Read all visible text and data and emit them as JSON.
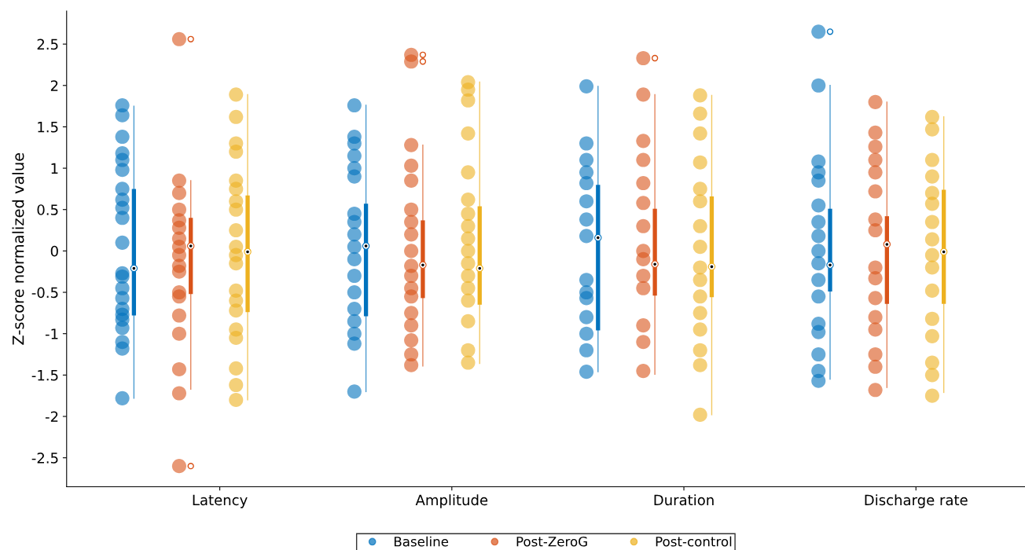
{
  "chart_data": {
    "type": "box",
    "ylabel": "Z-score normalized value",
    "categories": [
      "Latency",
      "Amplitude",
      "Duration",
      "Discharge rate"
    ],
    "ylim": [
      -2.85,
      2.9
    ],
    "yticks": [
      {
        "value": -2.5,
        "label": "-2.5"
      },
      {
        "value": -2,
        "label": "-2"
      },
      {
        "value": -1.5,
        "label": "-1.5"
      },
      {
        "value": -1,
        "label": "-1"
      },
      {
        "value": -0.5,
        "label": "-0.5"
      },
      0,
      0.5,
      1,
      1.5,
      2,
      2.5
    ],
    "grid": false,
    "legend": "bottom",
    "series": [
      {
        "name": "Baseline",
        "color": "#0072bd",
        "boxes": [
          {
            "low": -1.78,
            "q1": -0.78,
            "median": -0.21,
            "q3": 0.75,
            "high": 1.75
          },
          {
            "low": -1.7,
            "q1": -0.79,
            "median": 0.06,
            "q3": 0.57,
            "high": 1.76
          },
          {
            "low": -1.46,
            "q1": -0.96,
            "median": 0.16,
            "q3": 0.8,
            "high": 1.99
          },
          {
            "low": -1.55,
            "q1": -0.49,
            "median": -0.17,
            "q3": 0.51,
            "high": 2.0,
            "outliers": [
              2.65
            ]
          }
        ]
      },
      {
        "name": "Post-ZeroG",
        "color": "#d95319",
        "boxes": [
          {
            "low": -1.67,
            "q1": -0.52,
            "median": 0.06,
            "q3": 0.4,
            "high": 0.85,
            "outliers": [
              2.56,
              -2.6
            ]
          },
          {
            "low": -1.39,
            "q1": -0.57,
            "median": -0.17,
            "q3": 0.37,
            "high": 1.28,
            "outliers": [
              2.37,
              2.29
            ]
          },
          {
            "low": -1.49,
            "q1": -0.54,
            "median": -0.16,
            "q3": 0.51,
            "high": 1.89,
            "outliers": [
              2.33
            ]
          },
          {
            "low": -1.65,
            "q1": -0.64,
            "median": 0.08,
            "q3": 0.42,
            "high": 1.8
          }
        ]
      },
      {
        "name": "Post-control",
        "color": "#edb120",
        "boxes": [
          {
            "low": -1.8,
            "q1": -0.74,
            "median": -0.01,
            "q3": 0.67,
            "high": 1.89
          },
          {
            "low": -1.36,
            "q1": -0.65,
            "median": -0.21,
            "q3": 0.54,
            "high": 2.04
          },
          {
            "low": -1.98,
            "q1": -0.56,
            "median": -0.19,
            "q3": 0.66,
            "high": 1.88
          },
          {
            "low": -1.71,
            "q1": -0.64,
            "median": -0.01,
            "q3": 0.74,
            "high": 1.62
          }
        ]
      },
      {
        "type": "scatter",
        "color": "#0072bd",
        "x": [
          "Latency",
          "Latency",
          "Latency",
          "Latency",
          "Latency",
          "Latency",
          "Latency",
          "Latency",
          "Latency",
          "Latency",
          "Latency",
          "Latency",
          "Latency",
          "Latency",
          "Latency",
          "Latency",
          "Latency",
          "Latency",
          "Latency",
          "Latency",
          "Latency",
          "Latency",
          "Amplitude",
          "Amplitude",
          "Amplitude",
          "Amplitude",
          "Amplitude",
          "Amplitude",
          "Amplitude",
          "Amplitude",
          "Amplitude",
          "Amplitude",
          "Amplitude",
          "Amplitude",
          "Amplitude",
          "Amplitude",
          "Amplitude",
          "Amplitude",
          "Amplitude",
          "Amplitude",
          "Duration",
          "Duration",
          "Duration",
          "Duration",
          "Duration",
          "Duration",
          "Duration",
          "Duration",
          "Duration",
          "Duration",
          "Duration",
          "Duration",
          "Duration",
          "Duration",
          "Duration",
          "Discharge rate",
          "Discharge rate",
          "Discharge rate",
          "Discharge rate",
          "Discharge rate",
          "Discharge rate",
          "Discharge rate",
          "Discharge rate",
          "Discharge rate",
          "Discharge rate",
          "Discharge rate",
          "Discharge rate",
          "Discharge rate",
          "Discharge rate",
          "Discharge rate",
          "Discharge rate",
          "Discharge rate"
        ],
        "values": [
          1.76,
          1.64,
          1.38,
          1.18,
          1.1,
          0.98,
          0.75,
          0.62,
          0.52,
          0.4,
          0.1,
          -0.27,
          -0.31,
          -0.45,
          -0.57,
          -0.7,
          -0.77,
          -0.83,
          -0.93,
          -1.1,
          -1.18,
          -1.78,
          1.76,
          1.38,
          1.3,
          1.15,
          1.0,
          0.9,
          0.45,
          0.35,
          0.2,
          0.05,
          -0.1,
          -0.3,
          -0.5,
          -0.7,
          -0.85,
          -1.0,
          -1.12,
          -1.7,
          1.99,
          1.3,
          1.1,
          0.95,
          0.82,
          0.6,
          0.38,
          0.18,
          -0.35,
          -0.5,
          -0.57,
          -0.8,
          -1.0,
          -1.2,
          -1.46,
          2.65,
          2.0,
          1.08,
          0.95,
          0.85,
          0.55,
          0.35,
          0.18,
          0.0,
          -0.15,
          -0.35,
          -0.55,
          -0.88,
          -0.98,
          -1.25,
          -1.45,
          -1.57
        ]
      },
      {
        "type": "scatter",
        "color": "#d95319",
        "x": [
          "Latency",
          "Latency",
          "Latency",
          "Latency",
          "Latency",
          "Latency",
          "Latency",
          "Latency",
          "Latency",
          "Latency",
          "Latency",
          "Latency",
          "Latency",
          "Latency",
          "Latency",
          "Latency",
          "Latency",
          "Latency",
          "Amplitude",
          "Amplitude",
          "Amplitude",
          "Amplitude",
          "Amplitude",
          "Amplitude",
          "Amplitude",
          "Amplitude",
          "Amplitude",
          "Amplitude",
          "Amplitude",
          "Amplitude",
          "Amplitude",
          "Amplitude",
          "Amplitude",
          "Amplitude",
          "Amplitude",
          "Amplitude",
          "Duration",
          "Duration",
          "Duration",
          "Duration",
          "Duration",
          "Duration",
          "Duration",
          "Duration",
          "Duration",
          "Duration",
          "Duration",
          "Duration",
          "Duration",
          "Duration",
          "Discharge rate",
          "Discharge rate",
          "Discharge rate",
          "Discharge rate",
          "Discharge rate",
          "Discharge rate",
          "Discharge rate",
          "Discharge rate",
          "Discharge rate",
          "Discharge rate",
          "Discharge rate",
          "Discharge rate",
          "Discharge rate",
          "Discharge rate",
          "Discharge rate",
          "Discharge rate"
        ],
        "values": [
          2.56,
          0.85,
          0.7,
          0.5,
          0.37,
          0.28,
          0.15,
          0.05,
          -0.05,
          -0.18,
          -0.25,
          -0.5,
          -0.55,
          -0.78,
          -1.0,
          -1.43,
          -1.72,
          -2.6,
          2.37,
          2.29,
          1.28,
          1.03,
          0.85,
          0.5,
          0.35,
          0.2,
          0.0,
          -0.18,
          -0.3,
          -0.45,
          -0.55,
          -0.75,
          -0.9,
          -1.08,
          -1.25,
          -1.38,
          2.33,
          1.89,
          1.33,
          1.1,
          0.82,
          0.58,
          0.3,
          0.0,
          -0.1,
          -0.3,
          -0.45,
          -0.9,
          -1.1,
          -1.45,
          1.8,
          1.43,
          1.26,
          1.1,
          0.95,
          0.72,
          0.38,
          0.25,
          -0.2,
          -0.33,
          -0.57,
          -0.8,
          -0.95,
          -1.25,
          -1.4,
          -1.68
        ]
      },
      {
        "type": "scatter",
        "color": "#edb120",
        "x": [
          "Latency",
          "Latency",
          "Latency",
          "Latency",
          "Latency",
          "Latency",
          "Latency",
          "Latency",
          "Latency",
          "Latency",
          "Latency",
          "Latency",
          "Latency",
          "Latency",
          "Latency",
          "Latency",
          "Latency",
          "Latency",
          "Latency",
          "Latency",
          "Amplitude",
          "Amplitude",
          "Amplitude",
          "Amplitude",
          "Amplitude",
          "Amplitude",
          "Amplitude",
          "Amplitude",
          "Amplitude",
          "Amplitude",
          "Amplitude",
          "Amplitude",
          "Amplitude",
          "Amplitude",
          "Amplitude",
          "Amplitude",
          "Amplitude",
          "Duration",
          "Duration",
          "Duration",
          "Duration",
          "Duration",
          "Duration",
          "Duration",
          "Duration",
          "Duration",
          "Duration",
          "Duration",
          "Duration",
          "Duration",
          "Duration",
          "Duration",
          "Duration",
          "Discharge rate",
          "Discharge rate",
          "Discharge rate",
          "Discharge rate",
          "Discharge rate",
          "Discharge rate",
          "Discharge rate",
          "Discharge rate",
          "Discharge rate",
          "Discharge rate",
          "Discharge rate",
          "Discharge rate",
          "Discharge rate",
          "Discharge rate",
          "Discharge rate",
          "Discharge rate"
        ],
        "values": [
          1.89,
          1.62,
          1.3,
          1.2,
          0.85,
          0.75,
          0.6,
          0.5,
          0.25,
          0.05,
          -0.05,
          -0.15,
          -0.48,
          -0.6,
          -0.72,
          -0.95,
          -1.05,
          -1.42,
          -1.62,
          -1.8,
          2.04,
          1.95,
          1.82,
          1.42,
          0.95,
          0.62,
          0.45,
          0.3,
          0.15,
          0.0,
          -0.15,
          -0.3,
          -0.45,
          -0.6,
          -0.85,
          -1.2,
          -1.35,
          1.88,
          1.66,
          1.42,
          1.07,
          0.75,
          0.6,
          0.3,
          0.05,
          -0.2,
          -0.35,
          -0.55,
          -0.75,
          -0.95,
          -1.2,
          -1.38,
          -1.98,
          1.62,
          1.47,
          1.1,
          0.9,
          0.7,
          0.57,
          0.35,
          0.14,
          -0.05,
          -0.2,
          -0.48,
          -0.82,
          -1.03,
          -1.35,
          -1.5,
          -1.75
        ]
      }
    ]
  }
}
